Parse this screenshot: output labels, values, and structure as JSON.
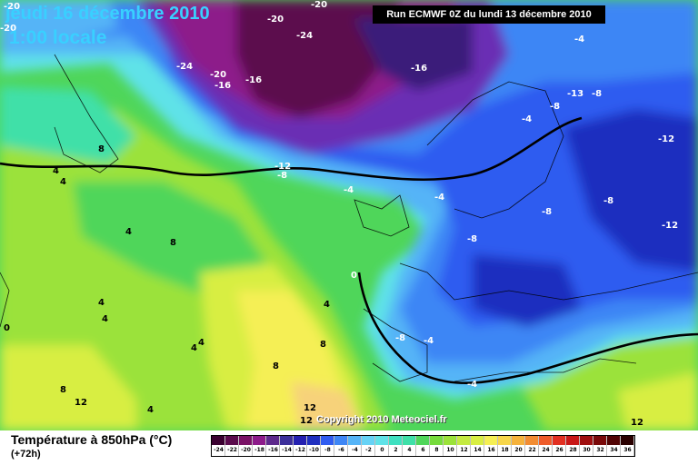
{
  "header": {
    "date_title": "jeudi 16 décembre 2010",
    "time_title": "1:00 locale",
    "run_info": "Run ECMWF 0Z du lundi 13 décembre 2010"
  },
  "map": {
    "copyright": "Copyright 2010 Meteociel.fr",
    "palette": {
      "deep_magenta": "#5b0b4d",
      "magenta": "#8d1b8a",
      "purple": "#6a2db4",
      "blue_deep": "#1f2fbf",
      "blue": "#2f5cf0",
      "blue_mid": "#3e86f5",
      "cyan_blue": "#55b4f7",
      "cyan": "#5fe2e8",
      "aqua_green": "#3fe0a8",
      "green": "#4fd65a",
      "lime": "#9be23a",
      "yellow_green": "#d8ee43",
      "yellow": "#f5ef54",
      "orange_light": "#f7d27a"
    },
    "contour_labels": [
      {
        "text": "-20"
      },
      {
        "text": "-20"
      },
      {
        "text": "-20"
      },
      {
        "text": "-24"
      },
      {
        "text": "-24"
      },
      {
        "text": "-20"
      },
      {
        "text": "-16"
      },
      {
        "text": "-16"
      },
      {
        "text": "-16"
      },
      {
        "text": "-20"
      },
      {
        "text": "-4"
      },
      {
        "text": "-13"
      },
      {
        "text": "-8"
      },
      {
        "text": "-8"
      },
      {
        "text": "-4"
      },
      {
        "text": "-12"
      },
      {
        "text": "-8"
      },
      {
        "text": "-12"
      },
      {
        "text": "-8"
      },
      {
        "text": "-12"
      },
      {
        "text": "-4"
      },
      {
        "text": "-8"
      },
      {
        "text": "-8"
      },
      {
        "text": "-8"
      },
      {
        "text": "-4"
      },
      {
        "text": "-4"
      },
      {
        "text": "-4"
      },
      {
        "text": "0"
      },
      {
        "text": "8"
      },
      {
        "text": "4"
      },
      {
        "text": "4"
      },
      {
        "text": "4"
      },
      {
        "text": "8"
      },
      {
        "text": "4"
      },
      {
        "text": "4"
      },
      {
        "text": "0"
      },
      {
        "text": "4"
      },
      {
        "text": "4"
      },
      {
        "text": "8"
      },
      {
        "text": "8"
      },
      {
        "text": "8"
      },
      {
        "text": "12"
      },
      {
        "text": "12"
      },
      {
        "text": "4"
      },
      {
        "text": "12"
      },
      {
        "text": "12"
      },
      {
        "text": "4"
      }
    ]
  },
  "footer": {
    "title": "Température à 850hPa (°C)",
    "subtitle": "(+72h)"
  },
  "legend": {
    "ticks": [
      "-24",
      "-22",
      "-20",
      "-18",
      "-16",
      "-14",
      "-12",
      "-10",
      "-8",
      "-6",
      "-4",
      "-2",
      "0",
      "2",
      "4",
      "6",
      "8",
      "10",
      "12",
      "14",
      "16",
      "18",
      "20",
      "22",
      "24",
      "26",
      "28",
      "30",
      "32",
      "34",
      "36"
    ],
    "colors": [
      "#3a0030",
      "#5b0b4d",
      "#7a1266",
      "#8d1b8a",
      "#5e2a8c",
      "#3c2f9a",
      "#2420b0",
      "#1f2fbf",
      "#2f5cf0",
      "#3e86f5",
      "#55b4f7",
      "#66d2f5",
      "#5fe2e8",
      "#3fe0c0",
      "#3fe0a8",
      "#4fd65a",
      "#76dc3c",
      "#9be23a",
      "#c4ea40",
      "#d8ee43",
      "#f5ef54",
      "#f7d64a",
      "#f5b23c",
      "#f28c32",
      "#ee5c2a",
      "#e23022",
      "#c81818",
      "#a01010",
      "#7a0a0a",
      "#520404",
      "#2a0000"
    ]
  }
}
